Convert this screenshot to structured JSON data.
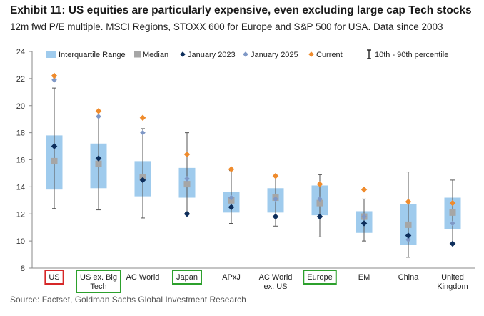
{
  "header": {
    "title": "Exhibit 11: US equities are particularly expensive, even excluding large cap Tech stocks",
    "subtitle": "12m fwd P/E multiple. MSCI Regions, STOXX 600 for Europe and S&P 500 for USA. Data since 2003"
  },
  "footer": {
    "source": "Source: Factset, Goldman Sachs Global Investment Research"
  },
  "colors": {
    "iqr": "#9fcbed",
    "median": "#a6a6a6",
    "jan2023": "#0d2e5c",
    "jan2025": "#7f98c6",
    "current": "#ef8b2c",
    "whisker": "#555555",
    "highlight_red": "#d62728",
    "highlight_green": "#2ca02c"
  },
  "chart_data": {
    "type": "boxplot",
    "ylim": [
      8,
      24
    ],
    "yticks": [
      "8",
      "10",
      "12",
      "14",
      "16",
      "18",
      "20",
      "22",
      "24"
    ],
    "legend": [
      {
        "key": "iqr",
        "label": "Interquartile Range"
      },
      {
        "key": "median",
        "label": "Median"
      },
      {
        "key": "jan2023",
        "label": "January 2023"
      },
      {
        "key": "jan2025",
        "label": "January 2025"
      },
      {
        "key": "current",
        "label": "Current"
      },
      {
        "key": "whisker",
        "label": "10th - 90th percentile"
      }
    ],
    "categories": [
      {
        "name": [
          "US"
        ],
        "highlight": "red",
        "p10": 12.4,
        "p90": 21.3,
        "q1": 13.8,
        "q3": 17.8,
        "median": 15.9,
        "jan2023": 17.0,
        "jan2025": 21.9,
        "current": 22.2
      },
      {
        "name": [
          "US ex. Big",
          "Tech"
        ],
        "highlight": "green",
        "p10": 12.3,
        "p90": 19.6,
        "q1": 13.9,
        "q3": 17.2,
        "median": 15.7,
        "jan2023": 16.1,
        "jan2025": 19.2,
        "current": 19.6
      },
      {
        "name": [
          "AC World"
        ],
        "highlight": "none",
        "p10": 11.7,
        "p90": 18.3,
        "q1": 13.3,
        "q3": 15.9,
        "median": 14.7,
        "jan2023": 14.5,
        "jan2025": 18.0,
        "current": 19.1
      },
      {
        "name": [
          "Japan"
        ],
        "highlight": "green",
        "p10": 12.1,
        "p90": 18.0,
        "q1": 13.2,
        "q3": 15.4,
        "median": 14.2,
        "jan2023": 12.0,
        "jan2025": 14.6,
        "current": 16.4
      },
      {
        "name": [
          "APxJ"
        ],
        "highlight": "none",
        "p10": 11.3,
        "p90": 15.2,
        "q1": 12.1,
        "q3": 13.6,
        "median": 13.0,
        "jan2023": 12.5,
        "jan2025": 13.2,
        "current": 15.3
      },
      {
        "name": [
          "AC World",
          "ex. US"
        ],
        "highlight": "none",
        "p10": 11.1,
        "p90": 14.8,
        "q1": 12.1,
        "q3": 13.9,
        "median": 13.2,
        "jan2023": 11.8,
        "jan2025": 13.1,
        "current": 14.8
      },
      {
        "name": [
          "Europe"
        ],
        "highlight": "green",
        "p10": 10.3,
        "p90": 14.9,
        "q1": 11.9,
        "q3": 14.1,
        "median": 12.8,
        "jan2023": 11.8,
        "jan2025": 13.1,
        "current": 14.2
      },
      {
        "name": [
          "EM"
        ],
        "highlight": "none",
        "p10": 10.0,
        "p90": 13.1,
        "q1": 10.6,
        "q3": 12.2,
        "median": 11.8,
        "jan2023": 11.3,
        "jan2025": 11.8,
        "current": 13.8
      },
      {
        "name": [
          "China"
        ],
        "highlight": "none",
        "p10": 8.8,
        "p90": 15.1,
        "q1": 9.7,
        "q3": 12.7,
        "median": 11.2,
        "jan2023": 10.4,
        "jan2025": 10.1,
        "current": 12.9
      },
      {
        "name": [
          "United",
          "Kingdom"
        ],
        "highlight": "none",
        "p10": 9.8,
        "p90": 14.5,
        "q1": 10.9,
        "q3": 13.2,
        "median": 12.1,
        "jan2023": 9.8,
        "jan2025": 11.3,
        "current": 12.8
      }
    ]
  }
}
